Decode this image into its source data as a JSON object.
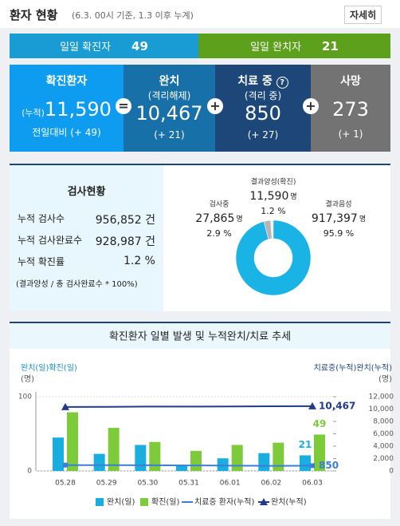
{
  "header": {
    "title": "환자 현황",
    "subtitle": "(6.3. 00시 기준, 1.3 이후 누계)",
    "detail_link": "자세히"
  },
  "daily": {
    "confirmed_label": "일일 확진자",
    "confirmed": "49",
    "released_label": "일일 완치자",
    "released": "21"
  },
  "summary": {
    "confirmed": {
      "title": "확진환자",
      "prefix": "(누적)",
      "value": "11,590",
      "change": "전일대비 (+ 49)"
    },
    "released": {
      "title": "완치",
      "subtitle": "(격리해제)",
      "value": "10,467",
      "change": "(+ 21)"
    },
    "treatment": {
      "title": "치료 중",
      "help": "?",
      "subtitle": "(격리 중)",
      "value": "850",
      "change": "(+ 27)"
    },
    "deaths": {
      "title": "사망",
      "value": "273",
      "change": "(+ 1)"
    },
    "operators": [
      "=",
      "+",
      "+"
    ]
  },
  "tests": {
    "title": "검사현황",
    "rows": [
      [
        "누적 검사수",
        "956,852 건"
      ],
      [
        "누적 검사완료수",
        "928,987 건"
      ],
      [
        "누적 확진률",
        "1.2 %"
      ]
    ],
    "note": "(결과양성 / 총 검사완료수 * 100%)"
  },
  "test_chart": {
    "type": "pie",
    "categories": [
      "결과양성(확진)",
      "검사중",
      "결과음성"
    ],
    "counts": [
      "11,590",
      "27,865",
      "917,397"
    ],
    "unit": "명",
    "values": [
      1.2,
      2.9,
      95.9
    ],
    "value_labels": [
      "1.2 %",
      "2.9 %",
      "95.9 %"
    ],
    "colors": [
      "#f0f0f0",
      "#b5b5b5",
      "#1ab3e6"
    ]
  },
  "chart_data": {
    "type": "bar",
    "title": "확진환자 일별 발생 및 누적완치/치료 추세",
    "y_label": "완치(일)확진(일)",
    "y_unit": "(명)",
    "y2_label": "치료중(누적)완치(누적)",
    "y2_unit": "(명)",
    "categories": [
      "05.28",
      "05.29",
      "05.30",
      "05.31",
      "06.01",
      "06.02",
      "06.03"
    ],
    "ylim": [
      0,
      100
    ],
    "yticks": [
      0,
      100
    ],
    "y2lim": [
      0,
      12000
    ],
    "y2ticks": [
      0,
      {
        "value": 2000,
        "label": "2,000"
      },
      {
        "value": 4000,
        "label": "4,000"
      },
      {
        "value": 6000,
        "label": "6,000"
      },
      {
        "value": 8000,
        "label": "8,000"
      },
      {
        "value": 10000,
        "label": "10,000"
      },
      {
        "value": 12000,
        "label": "12,000"
      }
    ],
    "series": [
      {
        "name": "완치(일)",
        "type": "bar",
        "color": "#1aaee0",
        "values": [
          45,
          23,
          35,
          8,
          17,
          24,
          21
        ],
        "value_labels": [
          null,
          null,
          null,
          null,
          null,
          null,
          "21"
        ]
      },
      {
        "name": "확진(일)",
        "type": "bar",
        "color": "#7dcb3a",
        "values": [
          79,
          58,
          39,
          27,
          35,
          38,
          49
        ],
        "value_labels": [
          null,
          null,
          null,
          null,
          null,
          null,
          "49"
        ]
      },
      {
        "name": "치료중 환자(누적)",
        "type": "line",
        "axis": "y2",
        "color": "#3a7fd5",
        "values": [
          940,
          930,
          925,
          890,
          860,
          823,
          850
        ],
        "value_labels": [
          null,
          null,
          null,
          null,
          null,
          null,
          "850"
        ]
      },
      {
        "name": "완치(누적)",
        "type": "line",
        "axis": "y2",
        "color": "#233a8a",
        "values": [
          10339,
          10362,
          10397,
          10405,
          10422,
          10446,
          10467
        ],
        "value_labels": [
          null,
          null,
          null,
          null,
          null,
          null,
          "10,467"
        ]
      }
    ]
  }
}
